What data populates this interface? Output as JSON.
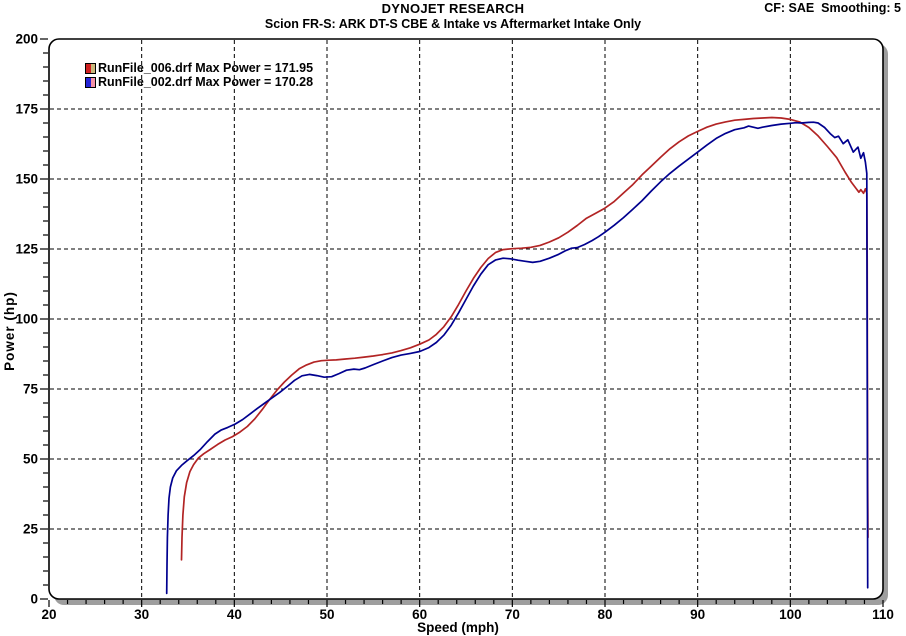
{
  "header": {
    "brand": "DYNOJET RESEARCH",
    "cf": "CF: SAE  Smoothing: 5",
    "subtitle": "Scion FR-S: ARK DT-S CBE & Intake vs Aftermarket Intake Only"
  },
  "legend": {
    "items": [
      {
        "label": "RunFile_006.drf Max Power = 171.95",
        "swatch_left": "#cf2020",
        "swatch_right": "#c9b87b"
      },
      {
        "label": "RunFile_002.drf Max Power = 170.28",
        "swatch_left": "#2424d6",
        "swatch_right": "#f693a8"
      }
    ]
  },
  "chart_data": {
    "type": "line",
    "title": "Scion FR-S: ARK DT-S CBE & Intake vs Aftermarket Intake Only",
    "xlabel": "Speed (mph)",
    "ylabel": "Power (hp)",
    "xlim": [
      20,
      110
    ],
    "ylim": [
      0,
      200
    ],
    "x_ticks": [
      20,
      30,
      40,
      50,
      60,
      70,
      80,
      90,
      100,
      110
    ],
    "y_ticks": [
      0,
      25,
      50,
      75,
      100,
      125,
      150,
      175,
      200
    ],
    "x_minor_step": 2,
    "y_minor_step": 5,
    "grid": "dashed",
    "legend_position": "top-left",
    "colors": {
      "grid": "#000000",
      "border": "#000000",
      "shadow": "#9e9e9e",
      "background": "#ffffff"
    },
    "series": [
      {
        "name": "RunFile_006.drf",
        "max_power": 171.95,
        "color": "#b22424",
        "points": [
          [
            34.3,
            14
          ],
          [
            34.35,
            22
          ],
          [
            34.45,
            30
          ],
          [
            34.6,
            36.5
          ],
          [
            34.85,
            41.5
          ],
          [
            35.2,
            45.5
          ],
          [
            35.6,
            48
          ],
          [
            36.1,
            50.3
          ],
          [
            36.7,
            51.9
          ],
          [
            37.4,
            53.4
          ],
          [
            38.2,
            55.2
          ],
          [
            39,
            56.8
          ],
          [
            39.8,
            58
          ],
          [
            40.6,
            59.6
          ],
          [
            41.4,
            61.6
          ],
          [
            42.2,
            64.3
          ],
          [
            43,
            67.6
          ],
          [
            43.8,
            71.2
          ],
          [
            44.6,
            74.6
          ],
          [
            45.4,
            77.5
          ],
          [
            46.2,
            80
          ],
          [
            47,
            82.2
          ],
          [
            47.8,
            83.6
          ],
          [
            48.6,
            84.6
          ],
          [
            49.4,
            85.1
          ],
          [
            50.2,
            85.3
          ],
          [
            51,
            85.4
          ],
          [
            52,
            85.7
          ],
          [
            53,
            86
          ],
          [
            54,
            86.4
          ],
          [
            55,
            86.8
          ],
          [
            56,
            87.3
          ],
          [
            57,
            87.9
          ],
          [
            58,
            88.7
          ],
          [
            59,
            89.7
          ],
          [
            60,
            91
          ],
          [
            61,
            92.5
          ],
          [
            61.8,
            94.5
          ],
          [
            62.6,
            97.2
          ],
          [
            63.4,
            100.8
          ],
          [
            64.2,
            105.2
          ],
          [
            65,
            110
          ],
          [
            65.8,
            114.5
          ],
          [
            66.6,
            118.4
          ],
          [
            67.4,
            121.6
          ],
          [
            68.2,
            123.8
          ],
          [
            69,
            124.8
          ],
          [
            70,
            125.1
          ],
          [
            71,
            125.3
          ],
          [
            72,
            125.6
          ],
          [
            73,
            126.3
          ],
          [
            74,
            127.5
          ],
          [
            75,
            129
          ],
          [
            76,
            131
          ],
          [
            77,
            133.4
          ],
          [
            78,
            136
          ],
          [
            79,
            137.8
          ],
          [
            80,
            139.6
          ],
          [
            81,
            142
          ],
          [
            82,
            145
          ],
          [
            83,
            148
          ],
          [
            84,
            151.5
          ],
          [
            85,
            154.6
          ],
          [
            86,
            157.8
          ],
          [
            87,
            160.8
          ],
          [
            88,
            163.3
          ],
          [
            89,
            165.4
          ],
          [
            90,
            167
          ],
          [
            91,
            168.5
          ],
          [
            92,
            169.6
          ],
          [
            93,
            170.4
          ],
          [
            94,
            171
          ],
          [
            95,
            171.3
          ],
          [
            96,
            171.6
          ],
          [
            97,
            171.8
          ],
          [
            98,
            171.95
          ],
          [
            99,
            171.8
          ],
          [
            100,
            171.3
          ],
          [
            101,
            170.4
          ],
          [
            102,
            168.4
          ],
          [
            103,
            165.4
          ],
          [
            104,
            161.6
          ],
          [
            105,
            157.6
          ],
          [
            105.9,
            152.5
          ],
          [
            106.6,
            148.8
          ],
          [
            107.1,
            146.6
          ],
          [
            107.4,
            145.3
          ],
          [
            107.6,
            146.2
          ],
          [
            107.9,
            144.9
          ],
          [
            108.1,
            146.5
          ],
          [
            108.25,
            145
          ],
          [
            108.3,
            120
          ],
          [
            108.32,
            80
          ],
          [
            108.35,
            40
          ],
          [
            108.38,
            22
          ]
        ]
      },
      {
        "name": "RunFile_002.drf",
        "max_power": 170.28,
        "color": "#00008f",
        "points": [
          [
            32.7,
            2
          ],
          [
            32.73,
            12
          ],
          [
            32.78,
            22
          ],
          [
            32.85,
            30
          ],
          [
            32.95,
            36
          ],
          [
            33.1,
            40
          ],
          [
            33.35,
            43.2
          ],
          [
            33.75,
            45.8
          ],
          [
            34.3,
            47.7
          ],
          [
            34.9,
            49.4
          ],
          [
            35.6,
            51.2
          ],
          [
            36.3,
            53.3
          ],
          [
            37.1,
            56.2
          ],
          [
            37.9,
            58.9
          ],
          [
            38.6,
            60.4
          ],
          [
            39.3,
            61.3
          ],
          [
            40.1,
            62.5
          ],
          [
            40.9,
            64.1
          ],
          [
            41.7,
            66.1
          ],
          [
            42.5,
            68.1
          ],
          [
            43.3,
            70
          ],
          [
            44.1,
            71.9
          ],
          [
            44.9,
            73.8
          ],
          [
            45.7,
            75.9
          ],
          [
            46.5,
            78.1
          ],
          [
            47.3,
            79.7
          ],
          [
            48.1,
            80.2
          ],
          [
            48.9,
            79.8
          ],
          [
            49.7,
            79.2
          ],
          [
            50.5,
            79.4
          ],
          [
            51.3,
            80.5
          ],
          [
            52.1,
            81.7
          ],
          [
            52.9,
            82.1
          ],
          [
            53.5,
            81.9
          ],
          [
            54.1,
            82.5
          ],
          [
            55,
            83.7
          ],
          [
            56,
            85
          ],
          [
            57,
            86.2
          ],
          [
            58,
            87.1
          ],
          [
            59,
            87.7
          ],
          [
            60,
            88.4
          ],
          [
            61,
            89.8
          ],
          [
            61.8,
            91.6
          ],
          [
            62.6,
            94.2
          ],
          [
            63.4,
            97.8
          ],
          [
            64.2,
            102.2
          ],
          [
            65,
            107
          ],
          [
            65.8,
            111.8
          ],
          [
            66.6,
            116
          ],
          [
            67.4,
            119.4
          ],
          [
            68.2,
            121.1
          ],
          [
            69,
            121.7
          ],
          [
            69.8,
            121.5
          ],
          [
            70.6,
            121
          ],
          [
            71.4,
            120.6
          ],
          [
            72.2,
            120.2
          ],
          [
            73,
            120.6
          ],
          [
            74,
            121.7
          ],
          [
            75,
            123.1
          ],
          [
            75.8,
            124.5
          ],
          [
            76.4,
            125.3
          ],
          [
            77,
            125.5
          ],
          [
            77.8,
            126.6
          ],
          [
            78.6,
            128
          ],
          [
            79.3,
            129.4
          ],
          [
            80,
            131
          ],
          [
            81,
            133.5
          ],
          [
            82,
            136.2
          ],
          [
            83,
            139.2
          ],
          [
            84,
            142.3
          ],
          [
            85,
            145.7
          ],
          [
            86,
            149
          ],
          [
            87,
            152
          ],
          [
            88,
            154.6
          ],
          [
            89,
            157.1
          ],
          [
            90,
            159.6
          ],
          [
            91,
            162.1
          ],
          [
            92,
            164.5
          ],
          [
            93,
            166.3
          ],
          [
            94,
            167.6
          ],
          [
            95,
            168.3
          ],
          [
            95.5,
            168.9
          ],
          [
            96,
            168.5
          ],
          [
            96.5,
            168.1
          ],
          [
            97,
            168.5
          ],
          [
            98,
            169.1
          ],
          [
            99,
            169.6
          ],
          [
            100,
            169.9
          ],
          [
            100.6,
            170.1
          ],
          [
            101.2,
            170
          ],
          [
            102,
            170.2
          ],
          [
            102.5,
            170.28
          ],
          [
            103,
            170
          ],
          [
            103.7,
            168.4
          ],
          [
            104.3,
            166.2
          ],
          [
            104.8,
            164.8
          ],
          [
            105.2,
            165.3
          ],
          [
            105.7,
            162.6
          ],
          [
            106.2,
            164
          ],
          [
            106.8,
            159.6
          ],
          [
            107.3,
            161.4
          ],
          [
            107.6,
            157.4
          ],
          [
            107.9,
            159.4
          ],
          [
            108.1,
            156
          ],
          [
            108.25,
            152
          ],
          [
            108.28,
            100
          ],
          [
            108.32,
            50
          ],
          [
            108.35,
            4
          ]
        ]
      }
    ]
  }
}
